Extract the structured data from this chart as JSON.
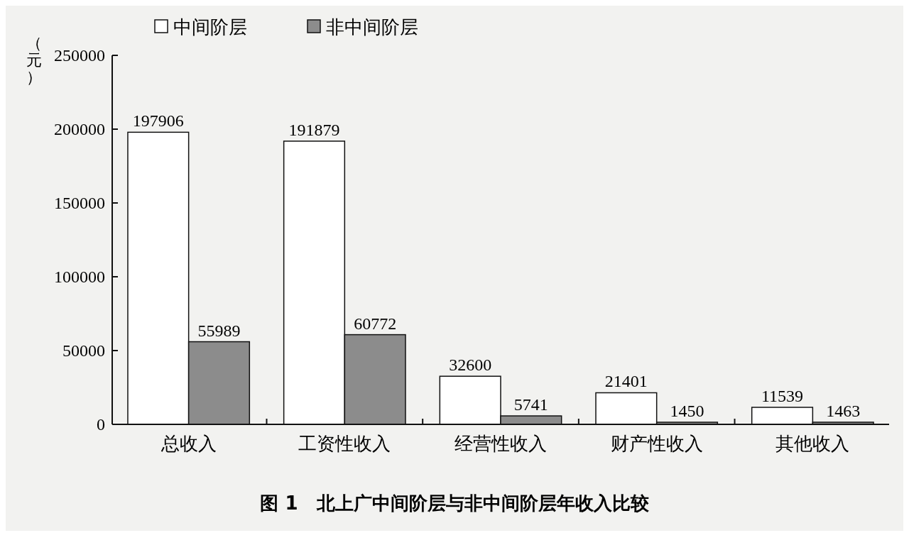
{
  "chart_data": {
    "type": "bar",
    "title": "图 1　北上广中间阶层与非中间阶层年收入比较",
    "ylabel": "（元）",
    "categories": [
      "总收入",
      "工资性收入",
      "经营性收入",
      "财产性收入",
      "其他收入"
    ],
    "series": [
      {
        "name": "中间阶层",
        "color": "#ffffff",
        "values": [
          197906,
          191879,
          32600,
          21401,
          11539
        ]
      },
      {
        "name": "非中间阶层",
        "color": "#8c8c8c",
        "values": [
          55989,
          60772,
          5741,
          1450,
          1463
        ]
      }
    ],
    "ylim": [
      0,
      250000
    ],
    "yticks": [
      0,
      50000,
      100000,
      150000,
      200000,
      250000
    ],
    "data_labels": true,
    "legend": "top left",
    "grid": false
  }
}
